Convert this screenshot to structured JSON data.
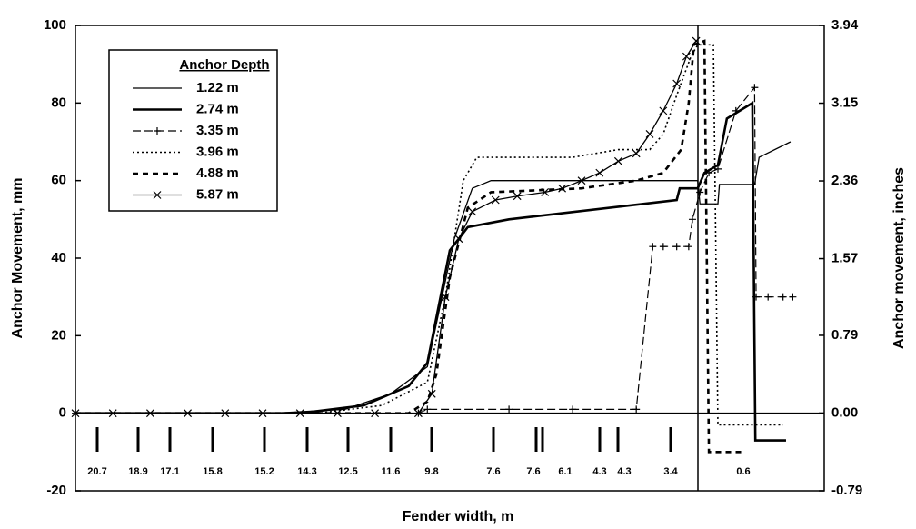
{
  "chart_data": {
    "type": "line",
    "xlabel": "Fender width, m",
    "ylabel": "Anchor Movement, mm",
    "y2label": "Anchor movement, inches",
    "legend_title": "Anchor Depth",
    "legend": "upper left",
    "xlim": [
      0,
      100
    ],
    "ylim": [
      -20,
      100
    ],
    "yticks": [
      -20,
      0,
      20,
      40,
      60,
      80,
      100
    ],
    "y2lim": [
      -0.79,
      3.94
    ],
    "y2ticks": [
      -0.79,
      {
        "value": 0,
        "label": "0.00"
      },
      0.79,
      1.57,
      2.36,
      3.15,
      3.94
    ],
    "fender_labels": [
      "20.7",
      "18.9",
      "17.1",
      "15.8",
      "15.2",
      "14.3",
      "12.5",
      "11.6",
      "9.8",
      "7.6",
      "7.6",
      "6.1",
      "4.3",
      "4.3",
      "3.4",
      "0.6"
    ],
    "series": [
      {
        "name": "1.22 m",
        "color": "#000000",
        "line_style": "solid",
        "marker": "none",
        "x": [
          0,
          26.3,
          36.0,
          42.1,
          47.0,
          50.6,
          53.0,
          55.5,
          80.3,
          83.1,
          83.4,
          85.8,
          86.0,
          90.7,
          91.3,
          95.5
        ],
        "values": [
          0,
          0,
          1,
          5,
          12,
          45,
          58,
          60,
          60,
          60,
          54,
          54,
          59,
          59,
          66,
          70
        ]
      },
      {
        "name": "2.74 m",
        "color": "#000000",
        "line_style": "thick",
        "marker": "none",
        "x": [
          0,
          30.0,
          38.5,
          44.5,
          47.0,
          50.0,
          52.4,
          57.9,
          80.3,
          80.7,
          83.1,
          84.0,
          85.8,
          87.0,
          90.4,
          90.8,
          94.9
        ],
        "values": [
          0,
          0,
          2,
          7,
          13,
          42,
          48,
          50,
          55,
          58,
          58,
          62,
          64,
          76,
          80,
          -7,
          -7
        ]
      },
      {
        "name": "3.35 m",
        "color": "#000000",
        "line_style": "dashed",
        "marker": "plus",
        "x": [
          0,
          45.8,
          47.0,
          57.9,
          66.4,
          74.9,
          77.1,
          78.5,
          80.3,
          81.9,
          82.4,
          83.4,
          84.6,
          85.8,
          88.2,
          90.7,
          90.9,
          92.5,
          94.5,
          95.8
        ],
        "values": [
          0,
          0,
          1,
          1,
          1,
          1,
          43,
          43,
          43,
          43,
          50,
          57,
          62,
          63,
          78,
          84,
          30,
          30,
          30,
          30
        ]
      },
      {
        "name": "3.96 m",
        "color": "#000000",
        "line_style": "dotted",
        "marker": "none",
        "x": [
          0,
          32.4,
          40.9,
          47.0,
          49.4,
          51.8,
          53.6,
          57.9,
          66.4,
          72.5,
          76.7,
          78.5,
          80.3,
          82.2,
          83.1,
          85.2,
          85.8,
          94.5
        ],
        "values": [
          0,
          0,
          2,
          8,
          30,
          60,
          66,
          66,
          66,
          68,
          68,
          72,
          82,
          92,
          95,
          95,
          -3,
          -3
        ]
      },
      {
        "name": "4.88 m",
        "color": "#000000",
        "line_style": "thick-dashed",
        "marker": "none",
        "x": [
          0,
          44.5,
          47.0,
          48.2,
          50.0,
          52.4,
          55.5,
          67.6,
          74.9,
          78.5,
          80.9,
          81.9,
          82.6,
          84.0,
          84.6,
          89.2
        ],
        "values": [
          0,
          0,
          3,
          10,
          35,
          53,
          57,
          58,
          60,
          62,
          68,
          80,
          95,
          96,
          -10,
          -10
        ]
      },
      {
        "name": "5.87 m",
        "color": "#000000",
        "line_style": "solid",
        "marker": "x",
        "x": [
          0,
          5,
          10,
          15,
          20,
          25,
          30,
          35,
          40,
          45.8,
          47.6,
          49.4,
          51.2,
          53.0,
          56.1,
          59.0,
          62.7,
          65.0,
          67.6,
          70.0,
          72.5,
          74.9,
          76.7,
          78.5,
          80.3,
          81.6,
          82.9
        ],
        "values": [
          0,
          0,
          0,
          0,
          0,
          0,
          0,
          0,
          0,
          0,
          5,
          30,
          45,
          52,
          55,
          56,
          57,
          58,
          60,
          62,
          65,
          67,
          72,
          78,
          85,
          92,
          96
        ]
      }
    ]
  }
}
